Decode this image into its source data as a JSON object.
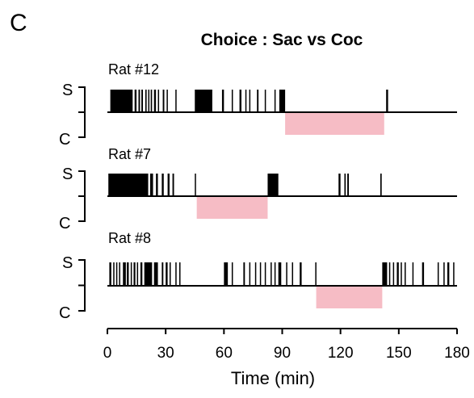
{
  "panel_label": "C",
  "chart_data": {
    "type": "event-raster",
    "title": "Choice : Sac vs Coc",
    "xlabel": "Time (min)",
    "xlim": [
      0,
      180
    ],
    "xticks": [
      0,
      30,
      60,
      90,
      120,
      150,
      180
    ],
    "y_levels": {
      "top": "S",
      "bottom": "C"
    },
    "colors": {
      "raster": "#000000",
      "shade": "#f6bcc5"
    },
    "series": [
      {
        "name": "Rat #12",
        "shade": [
          91.5,
          142.5
        ],
        "events": [
          [
            1.5,
            13
          ],
          [
            14,
            15
          ],
          [
            16,
            16.8
          ],
          [
            17.5,
            18.3
          ],
          [
            19.5,
            20.2
          ],
          [
            21,
            21.5
          ],
          [
            22.3,
            23
          ],
          [
            24,
            25
          ],
          [
            26,
            26.6
          ],
          [
            28.5,
            29.3
          ],
          [
            30.5,
            31
          ],
          [
            35,
            35.5
          ],
          [
            45,
            54
          ],
          [
            59,
            60
          ],
          [
            64,
            64.5
          ],
          [
            68,
            69
          ],
          [
            71,
            71.6
          ],
          [
            73,
            73.5
          ],
          [
            77,
            77.8
          ],
          [
            81,
            81.6
          ],
          [
            86,
            86.5
          ],
          [
            88.5,
            91.5
          ],
          [
            143.5,
            144.5
          ]
        ]
      },
      {
        "name": "Rat #7",
        "shade": [
          46,
          82.5
        ],
        "events": [
          [
            0.5,
            21
          ],
          [
            22,
            23.5
          ],
          [
            25,
            26
          ],
          [
            28,
            29
          ],
          [
            31,
            32
          ],
          [
            33.5,
            34.3
          ],
          [
            45,
            45.6
          ],
          [
            82.5,
            88
          ],
          [
            119,
            120
          ],
          [
            122,
            122.7
          ],
          [
            123.5,
            124.3
          ],
          [
            140.5,
            141.2
          ]
        ]
      },
      {
        "name": "Rat #8",
        "shade": [
          107.5,
          141.5
        ],
        "events": [
          [
            1,
            2
          ],
          [
            3,
            3.6
          ],
          [
            4.5,
            5.1
          ],
          [
            6,
            6.6
          ],
          [
            8,
            9.5
          ],
          [
            10,
            11
          ],
          [
            12,
            12.6
          ],
          [
            13.5,
            14.4
          ],
          [
            15.2,
            15.8
          ],
          [
            17,
            18
          ],
          [
            19,
            23
          ],
          [
            24,
            26
          ],
          [
            28,
            28.8
          ],
          [
            30,
            31
          ],
          [
            32,
            32.6
          ],
          [
            35,
            35.6
          ],
          [
            37,
            37.5
          ],
          [
            60,
            62
          ],
          [
            64,
            64.6
          ],
          [
            70,
            70.8
          ],
          [
            73,
            73.5
          ],
          [
            76,
            76.5
          ],
          [
            78.5,
            79
          ],
          [
            81,
            81.6
          ],
          [
            84,
            84.5
          ],
          [
            86,
            86.5
          ],
          [
            88,
            89.5
          ],
          [
            92,
            92.5
          ],
          [
            95,
            95.5
          ],
          [
            99,
            100
          ],
          [
            107,
            107.5
          ],
          [
            141.5,
            144
          ],
          [
            145,
            145.6
          ],
          [
            147,
            147.5
          ],
          [
            149,
            150
          ],
          [
            151,
            151.6
          ],
          [
            153,
            153.5
          ],
          [
            157,
            157.6
          ],
          [
            162,
            163
          ],
          [
            170,
            170.6
          ],
          [
            173,
            173.5
          ],
          [
            175,
            176
          ],
          [
            178,
            178.6
          ]
        ]
      }
    ]
  }
}
